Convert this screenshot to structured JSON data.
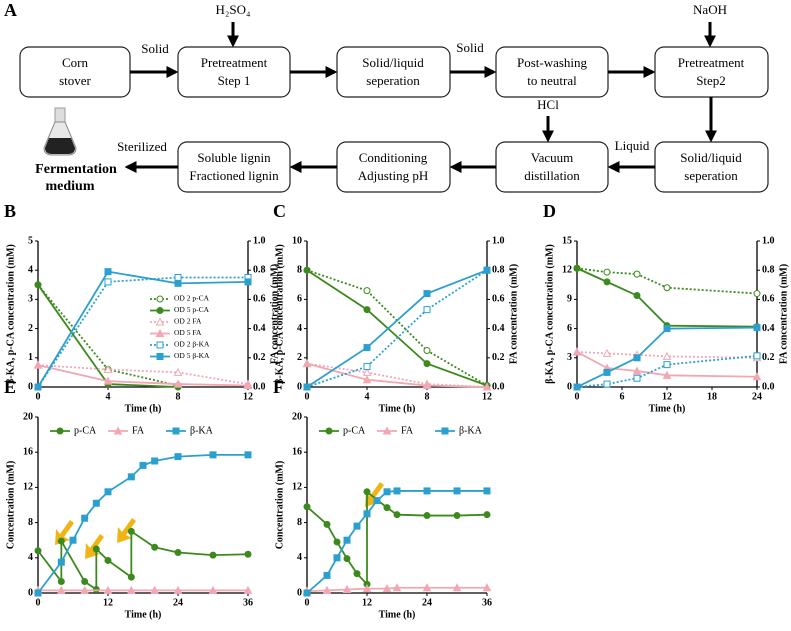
{
  "diagram": {
    "label": "A",
    "nodes": [
      {
        "lines": [
          "Corn",
          "stover"
        ]
      },
      {
        "lines": [
          "Pretreatment",
          "Step 1"
        ]
      },
      {
        "lines": [
          "Solid/liquid",
          "seperation"
        ]
      },
      {
        "lines": [
          "Post-washing",
          "to neutral"
        ]
      },
      {
        "lines": [
          "Pretreatment",
          "Step2"
        ]
      },
      {
        "lines": [
          "Solid/liquid",
          "seperation"
        ]
      },
      {
        "lines": [
          "Vacuum",
          "distillation"
        ]
      },
      {
        "lines": [
          "Conditioning",
          "Adjusting pH"
        ]
      },
      {
        "lines": [
          "Soluble lignin",
          "Fractioned lignin"
        ]
      }
    ],
    "edge_labels": [
      "Solid",
      "Solid",
      "Liquid",
      "Sterilized"
    ],
    "reagents": [
      "H₂SO₄",
      "NaOH",
      "HCl"
    ],
    "output": [
      "Fermentation",
      "medium"
    ]
  },
  "chart_data": [
    {
      "type": "line",
      "label": "B",
      "x": [
        0,
        4,
        8,
        12
      ],
      "xlim": [
        0,
        12
      ],
      "xticks": [
        0,
        4,
        8,
        12
      ],
      "ylim": [
        0,
        5
      ],
      "yticks": [
        0,
        1,
        2,
        3,
        4,
        5
      ],
      "y2lim": [
        0,
        1
      ],
      "y2ticks": [
        {
          "value": 0,
          "label": "0.0"
        },
        0.2,
        0.4,
        0.6,
        0.8,
        {
          "value": 1,
          "label": "1.0"
        }
      ],
      "xlabel": "Time (h)",
      "ylabel": "β-KA, p-CA concentration (mM)",
      "y2label": "FA concentration (mM)",
      "legend": "right",
      "series": [
        {
          "name": "OD 2 p-CA",
          "color": "#3c8a1e",
          "dash": true,
          "marker": "circle",
          "filled": false,
          "values": [
            3.5,
            0.6,
            0.05,
            null
          ]
        },
        {
          "name": "OD 5 p-CA",
          "color": "#3c8a1e",
          "dash": false,
          "marker": "circle",
          "filled": true,
          "values": [
            3.5,
            0.1,
            0,
            null
          ]
        },
        {
          "name": "OD 2 FA",
          "color": "#f2a7b3",
          "dash": true,
          "marker": "triangle",
          "filled": false,
          "axis": "y2",
          "values": [
            0.15,
            0.12,
            0.1,
            0.02
          ]
        },
        {
          "name": "OD 5 FA",
          "color": "#f2a7b3",
          "dash": false,
          "marker": "triangle",
          "filled": true,
          "axis": "y2",
          "values": [
            0.15,
            0.04,
            0.02,
            0.01
          ]
        },
        {
          "name": "OD 2 β-KA",
          "color": "#2ba0cf",
          "dash": true,
          "marker": "square",
          "filled": false,
          "values": [
            0,
            3.6,
            3.75,
            3.75
          ]
        },
        {
          "name": "OD 5 β-KA",
          "color": "#2ba0cf",
          "dash": false,
          "marker": "square",
          "filled": true,
          "values": [
            0,
            3.95,
            3.55,
            3.6
          ]
        }
      ]
    },
    {
      "type": "line",
      "label": "C",
      "x": [
        0,
        4,
        8,
        12
      ],
      "xlim": [
        0,
        12
      ],
      "xticks": [
        0,
        4,
        8,
        12
      ],
      "ylim": [
        0,
        10
      ],
      "yticks": [
        0,
        2,
        4,
        6,
        8,
        10
      ],
      "y2lim": [
        0,
        1
      ],
      "y2ticks": [
        {
          "value": 0,
          "label": "0.0"
        },
        0.2,
        0.4,
        0.6,
        0.8,
        {
          "value": 1,
          "label": "1.0"
        }
      ],
      "xlabel": "Time (h)",
      "ylabel": "β-KA, p-CA concentration (mM)",
      "y2label": "FA concentration (mM)",
      "series": [
        {
          "color": "#3c8a1e",
          "dash": true,
          "marker": "circle",
          "filled": false,
          "values": [
            8,
            6.6,
            2.5,
            0.1
          ]
        },
        {
          "color": "#3c8a1e",
          "dash": false,
          "marker": "circle",
          "filled": true,
          "values": [
            8,
            5.3,
            1.6,
            0.1
          ]
        },
        {
          "color": "#f2a7b3",
          "dash": true,
          "marker": "triangle",
          "filled": false,
          "axis": "y2",
          "values": [
            0.16,
            0.1,
            0.02,
            0
          ]
        },
        {
          "color": "#f2a7b3",
          "dash": false,
          "marker": "triangle",
          "filled": true,
          "axis": "y2",
          "values": [
            0.16,
            0.05,
            0.01,
            0
          ]
        },
        {
          "color": "#2ba0cf",
          "dash": true,
          "marker": "square",
          "filled": false,
          "values": [
            0,
            1.4,
            5.3,
            8
          ]
        },
        {
          "color": "#2ba0cf",
          "dash": false,
          "marker": "square",
          "filled": true,
          "values": [
            0,
            2.7,
            6.4,
            8
          ]
        }
      ]
    },
    {
      "type": "line",
      "label": "D",
      "x": [
        0,
        4,
        8,
        12,
        24
      ],
      "xlim": [
        0,
        24
      ],
      "xticks": [
        0,
        6,
        12,
        18,
        24
      ],
      "ylim": [
        0,
        15
      ],
      "yticks": [
        0,
        3,
        6,
        9,
        12,
        15
      ],
      "y2lim": [
        0,
        1
      ],
      "y2ticks": [
        {
          "value": 0,
          "label": "0.0"
        },
        0.2,
        0.4,
        0.6,
        0.8,
        {
          "value": 1,
          "label": "1.0"
        }
      ],
      "xlabel": "Time (h)",
      "ylabel": "β-KA, p-CA concentration (mM)",
      "y2label": "FA concentration (mM)",
      "series": [
        {
          "color": "#3c8a1e",
          "dash": true,
          "marker": "circle",
          "filled": false,
          "values": [
            12.2,
            11.8,
            11.6,
            10.2,
            9.6
          ]
        },
        {
          "color": "#3c8a1e",
          "dash": false,
          "marker": "circle",
          "filled": true,
          "values": [
            12.2,
            10.8,
            9.4,
            6.3,
            6.2
          ]
        },
        {
          "color": "#f2a7b3",
          "dash": true,
          "marker": "triangle",
          "filled": false,
          "axis": "y2",
          "values": [
            0.24,
            0.23,
            0.22,
            0.21,
            0.2
          ]
        },
        {
          "color": "#f2a7b3",
          "dash": false,
          "marker": "triangle",
          "filled": true,
          "axis": "y2",
          "values": [
            0.24,
            0.13,
            0.11,
            0.08,
            0.07
          ]
        },
        {
          "color": "#2ba0cf",
          "dash": true,
          "marker": "square",
          "filled": false,
          "values": [
            0,
            0.3,
            0.9,
            2.3,
            3.2
          ]
        },
        {
          "color": "#2ba0cf",
          "dash": false,
          "marker": "square",
          "filled": true,
          "values": [
            0,
            1.5,
            3,
            6,
            6.1
          ]
        }
      ]
    },
    {
      "type": "line",
      "label": "E",
      "xlim": [
        0,
        36
      ],
      "xticks": [
        0,
        12,
        24,
        36
      ],
      "ylim": [
        0,
        20
      ],
      "yticks": [
        0,
        4,
        8,
        12,
        16,
        20
      ],
      "xlabel": "Time (h)",
      "ylabel": "Concentration (mM)",
      "legend": "top",
      "series": [
        {
          "name": "p-CA",
          "color": "#3c8a1e",
          "marker": "circle",
          "filled": true,
          "x": [
            0,
            4,
            4,
            8,
            10,
            10,
            12,
            16,
            16,
            20,
            24,
            30,
            36
          ],
          "values": [
            4.8,
            1.3,
            5.9,
            1.3,
            0.4,
            5.0,
            3.7,
            1.8,
            7.0,
            5.2,
            4.6,
            4.3,
            4.4
          ]
        },
        {
          "name": "FA",
          "color": "#f2a7b3",
          "marker": "triangle",
          "filled": true,
          "x": [
            0,
            4,
            8,
            12,
            16,
            20,
            24,
            30,
            36
          ],
          "values": [
            0.3,
            0.3,
            0.3,
            0.3,
            0.3,
            0.3,
            0.3,
            0.3,
            0.3
          ]
        },
        {
          "name": "β-KA",
          "color": "#2ba0cf",
          "marker": "square",
          "filled": true,
          "x": [
            0,
            4,
            6,
            8,
            10,
            12,
            16,
            18,
            20,
            24,
            30,
            36
          ],
          "values": [
            0,
            3.5,
            6,
            8.5,
            10.2,
            11.5,
            13.2,
            14.5,
            15,
            15.5,
            15.7,
            15.7
          ]
        }
      ]
    },
    {
      "type": "line",
      "label": "F",
      "xlim": [
        0,
        36
      ],
      "xticks": [
        0,
        12,
        24,
        36
      ],
      "ylim": [
        0,
        20
      ],
      "yticks": [
        0,
        4,
        8,
        12,
        16,
        20
      ],
      "xlabel": "Time (h)",
      "ylabel": "Concentration (mM)",
      "legend": "top",
      "series": [
        {
          "name": "p-CA",
          "color": "#3c8a1e",
          "marker": "circle",
          "filled": true,
          "x": [
            0,
            4,
            6,
            8,
            10,
            12,
            12,
            16,
            18,
            24,
            30,
            36
          ],
          "values": [
            9.8,
            7.8,
            5.8,
            3.9,
            2.2,
            1.0,
            11.5,
            9.7,
            8.9,
            8.8,
            8.8,
            8.9
          ]
        },
        {
          "name": "FA",
          "color": "#f2a7b3",
          "marker": "triangle",
          "filled": true,
          "x": [
            0,
            4,
            8,
            12,
            16,
            18,
            24,
            30,
            36
          ],
          "values": [
            0.2,
            0.3,
            0.4,
            0.5,
            0.5,
            0.6,
            0.6,
            0.6,
            0.6
          ]
        },
        {
          "name": "β-KA",
          "color": "#2ba0cf",
          "marker": "square",
          "filled": true,
          "x": [
            0,
            4,
            6,
            8,
            10,
            12,
            14,
            16,
            18,
            24,
            30,
            36
          ],
          "values": [
            0,
            2,
            4,
            6,
            7.6,
            9,
            10.5,
            11.5,
            11.6,
            11.6,
            11.6,
            11.6
          ]
        }
      ]
    }
  ]
}
